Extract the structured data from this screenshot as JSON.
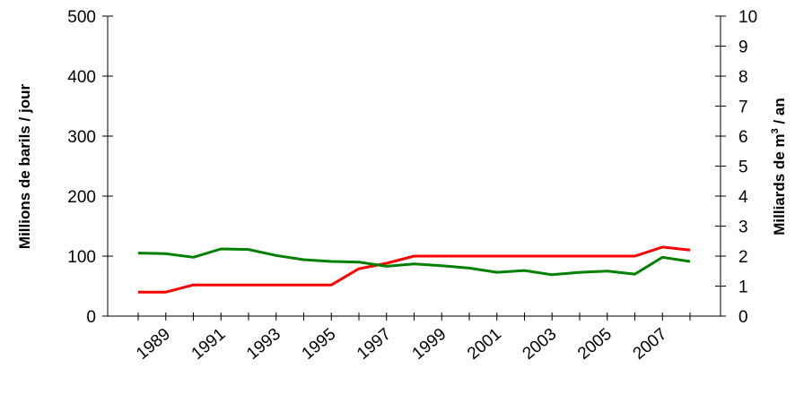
{
  "chart_data": {
    "type": "line",
    "title": "",
    "xlabel": "",
    "ylabel": "Millions de barils / jour",
    "y2label_prefix": "Milliards de m",
    "y2label_sup": "3",
    "y2label_suffix": " / an",
    "ylim": [
      0,
      500
    ],
    "y2lim": [
      0,
      10
    ],
    "y_ticks": [
      "0",
      "100",
      "200",
      "300",
      "400",
      "500"
    ],
    "y2_ticks": [
      "0",
      "1",
      "2",
      "3",
      "4",
      "5",
      "6",
      "7",
      "8",
      "9",
      "10"
    ],
    "x": [
      1988,
      1989,
      1990,
      1991,
      1992,
      1993,
      1994,
      1995,
      1996,
      1997,
      1998,
      1999,
      2000,
      2001,
      2002,
      2003,
      2004,
      2005,
      2006,
      2007,
      2008
    ],
    "x_tick_labels": [
      "1989",
      "1991",
      "1993",
      "1995",
      "1997",
      "1999",
      "2001",
      "2003",
      "2005",
      "2007"
    ],
    "x_tick_values": [
      1989,
      1991,
      1993,
      1995,
      1997,
      1999,
      2001,
      2003,
      2005,
      2007
    ],
    "grid": false,
    "legend": "none",
    "series": [
      {
        "color": "#ff0000",
        "axis": "left",
        "values": [
          40,
          40,
          52,
          52,
          52,
          52,
          52,
          52,
          79,
          88,
          100,
          100,
          100,
          100,
          100,
          100,
          100,
          100,
          100,
          115,
          110
        ]
      },
      {
        "color": "#008000",
        "axis": "left",
        "values": [
          105,
          104,
          98,
          112,
          111,
          101,
          94,
          91,
          90,
          83,
          87,
          84,
          80,
          73,
          76,
          69,
          73,
          75,
          70,
          98,
          91
        ]
      }
    ]
  }
}
